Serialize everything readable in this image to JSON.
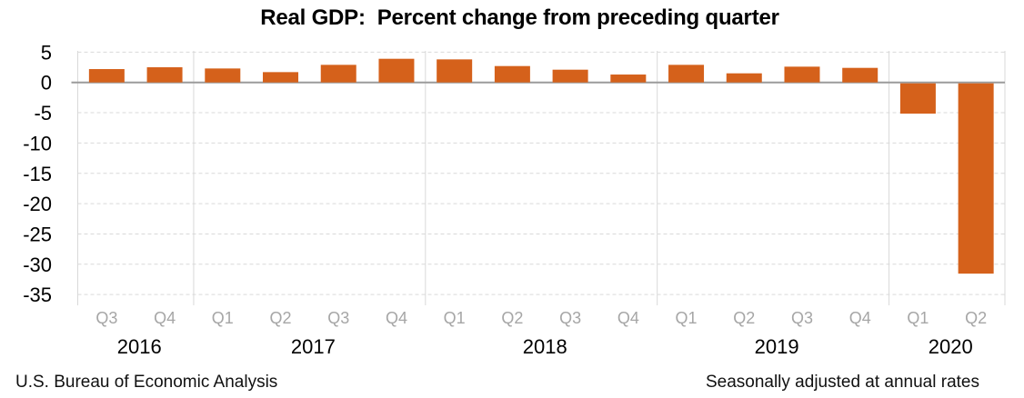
{
  "footer": {
    "left": "U.S. Bureau of Economic Analysis",
    "right": "Seasonally adjusted at annual rates"
  },
  "colors": {
    "bar": "#d5611b",
    "zero_line": "#9b9b9b",
    "gridline": "#d9d9d9",
    "divider": "#d9d9d9",
    "quarter_label": "#a6a6a6",
    "year_label": "#000000",
    "title_text": "#000000"
  },
  "chart_data": {
    "type": "bar",
    "title": "Real GDP:  Percent change from preceding quarter",
    "categories": [
      "Q3",
      "Q4",
      "Q1",
      "Q2",
      "Q3",
      "Q4",
      "Q1",
      "Q2",
      "Q3",
      "Q4",
      "Q1",
      "Q2",
      "Q3",
      "Q4",
      "Q1",
      "Q2"
    ],
    "values": [
      2.2,
      2.5,
      2.3,
      1.7,
      2.9,
      3.9,
      3.8,
      2.7,
      2.1,
      1.3,
      2.9,
      1.5,
      2.6,
      2.4,
      -5.0,
      -31.4
    ],
    "year_groups": [
      {
        "year": "2016",
        "quarters": 2
      },
      {
        "year": "2017",
        "quarters": 4
      },
      {
        "year": "2018",
        "quarters": 4
      },
      {
        "year": "2019",
        "quarters": 4
      },
      {
        "year": "2020",
        "quarters": 2
      }
    ],
    "xlabel": "",
    "ylabel": "",
    "ylim": [
      -35,
      5
    ],
    "yticks": [
      5,
      0,
      -5,
      -10,
      -15,
      -20,
      -25,
      -30,
      -35
    ],
    "grid": "horizontal-dashed",
    "legend": "none"
  }
}
